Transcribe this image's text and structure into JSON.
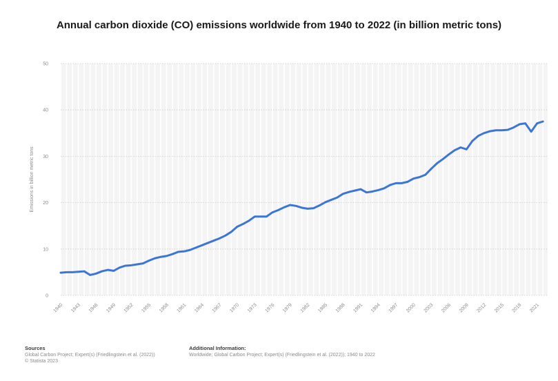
{
  "chart_data": {
    "type": "line",
    "title": "Annual carbon dioxide (CO) emissions worldwide from 1940 to 2022 (in billion metric tons)",
    "xlabel": "",
    "ylabel": "Emissions in billion metric tons",
    "ylim": [
      0,
      50
    ],
    "yticks": [
      0,
      10,
      20,
      30,
      40,
      50
    ],
    "xticklabels": [
      "1940",
      "1943",
      "1946",
      "1949",
      "1952",
      "1955",
      "1958",
      "1961",
      "1964",
      "1967",
      "1970",
      "1973",
      "1976",
      "1979",
      "1982",
      "1985",
      "1988",
      "1991",
      "1994",
      "1997",
      "2000",
      "2003",
      "2006",
      "2009",
      "2012",
      "2015",
      "2018",
      "2021"
    ],
    "grid": true,
    "line_color": "#3b76d4",
    "x": [
      1940,
      1941,
      1942,
      1943,
      1944,
      1945,
      1946,
      1947,
      1948,
      1949,
      1950,
      1951,
      1952,
      1953,
      1954,
      1955,
      1956,
      1957,
      1958,
      1959,
      1960,
      1961,
      1962,
      1963,
      1964,
      1965,
      1966,
      1967,
      1968,
      1969,
      1970,
      1971,
      1972,
      1973,
      1974,
      1975,
      1976,
      1977,
      1978,
      1979,
      1980,
      1981,
      1982,
      1983,
      1984,
      1985,
      1986,
      1987,
      1988,
      1989,
      1990,
      1991,
      1992,
      1993,
      1994,
      1995,
      1996,
      1997,
      1998,
      1999,
      2000,
      2001,
      2002,
      2003,
      2004,
      2005,
      2006,
      2007,
      2008,
      2009,
      2010,
      2011,
      2012,
      2013,
      2014,
      2015,
      2016,
      2017,
      2018,
      2019,
      2020,
      2021,
      2022
    ],
    "series": [
      {
        "values": [
          4.9,
          5.0,
          5.0,
          5.1,
          5.2,
          4.4,
          4.7,
          5.2,
          5.5,
          5.3,
          6.0,
          6.4,
          6.5,
          6.7,
          6.9,
          7.5,
          8.0,
          8.3,
          8.5,
          8.9,
          9.4,
          9.5,
          9.8,
          10.3,
          10.8,
          11.3,
          11.8,
          12.3,
          12.9,
          13.7,
          14.8,
          15.4,
          16.1,
          17.0,
          17.0,
          17.0,
          17.9,
          18.4,
          19.0,
          19.5,
          19.3,
          18.9,
          18.7,
          18.8,
          19.4,
          20.1,
          20.6,
          21.1,
          21.9,
          22.3,
          22.6,
          22.9,
          22.2,
          22.4,
          22.7,
          23.1,
          23.8,
          24.2,
          24.2,
          24.5,
          25.2,
          25.5,
          26.0,
          27.3,
          28.5,
          29.4,
          30.4,
          31.3,
          31.9,
          31.5,
          33.3,
          34.4,
          35.0,
          35.4,
          35.6,
          35.6,
          35.7,
          36.2,
          36.9,
          37.1,
          35.3,
          37.1,
          37.5
        ]
      }
    ]
  },
  "footer": {
    "sources_heading": "Sources",
    "sources_text": "Global Carbon Project; Expert(s) (Friedlingstein et al. (2022))",
    "copyright": "© Statista 2023",
    "additional_heading": "Additional Information:",
    "additional_text": "Worldwide; Global Carbon Project; Expert(s) (Friedlingstein et al. (2022)); 1940 to 2022"
  }
}
